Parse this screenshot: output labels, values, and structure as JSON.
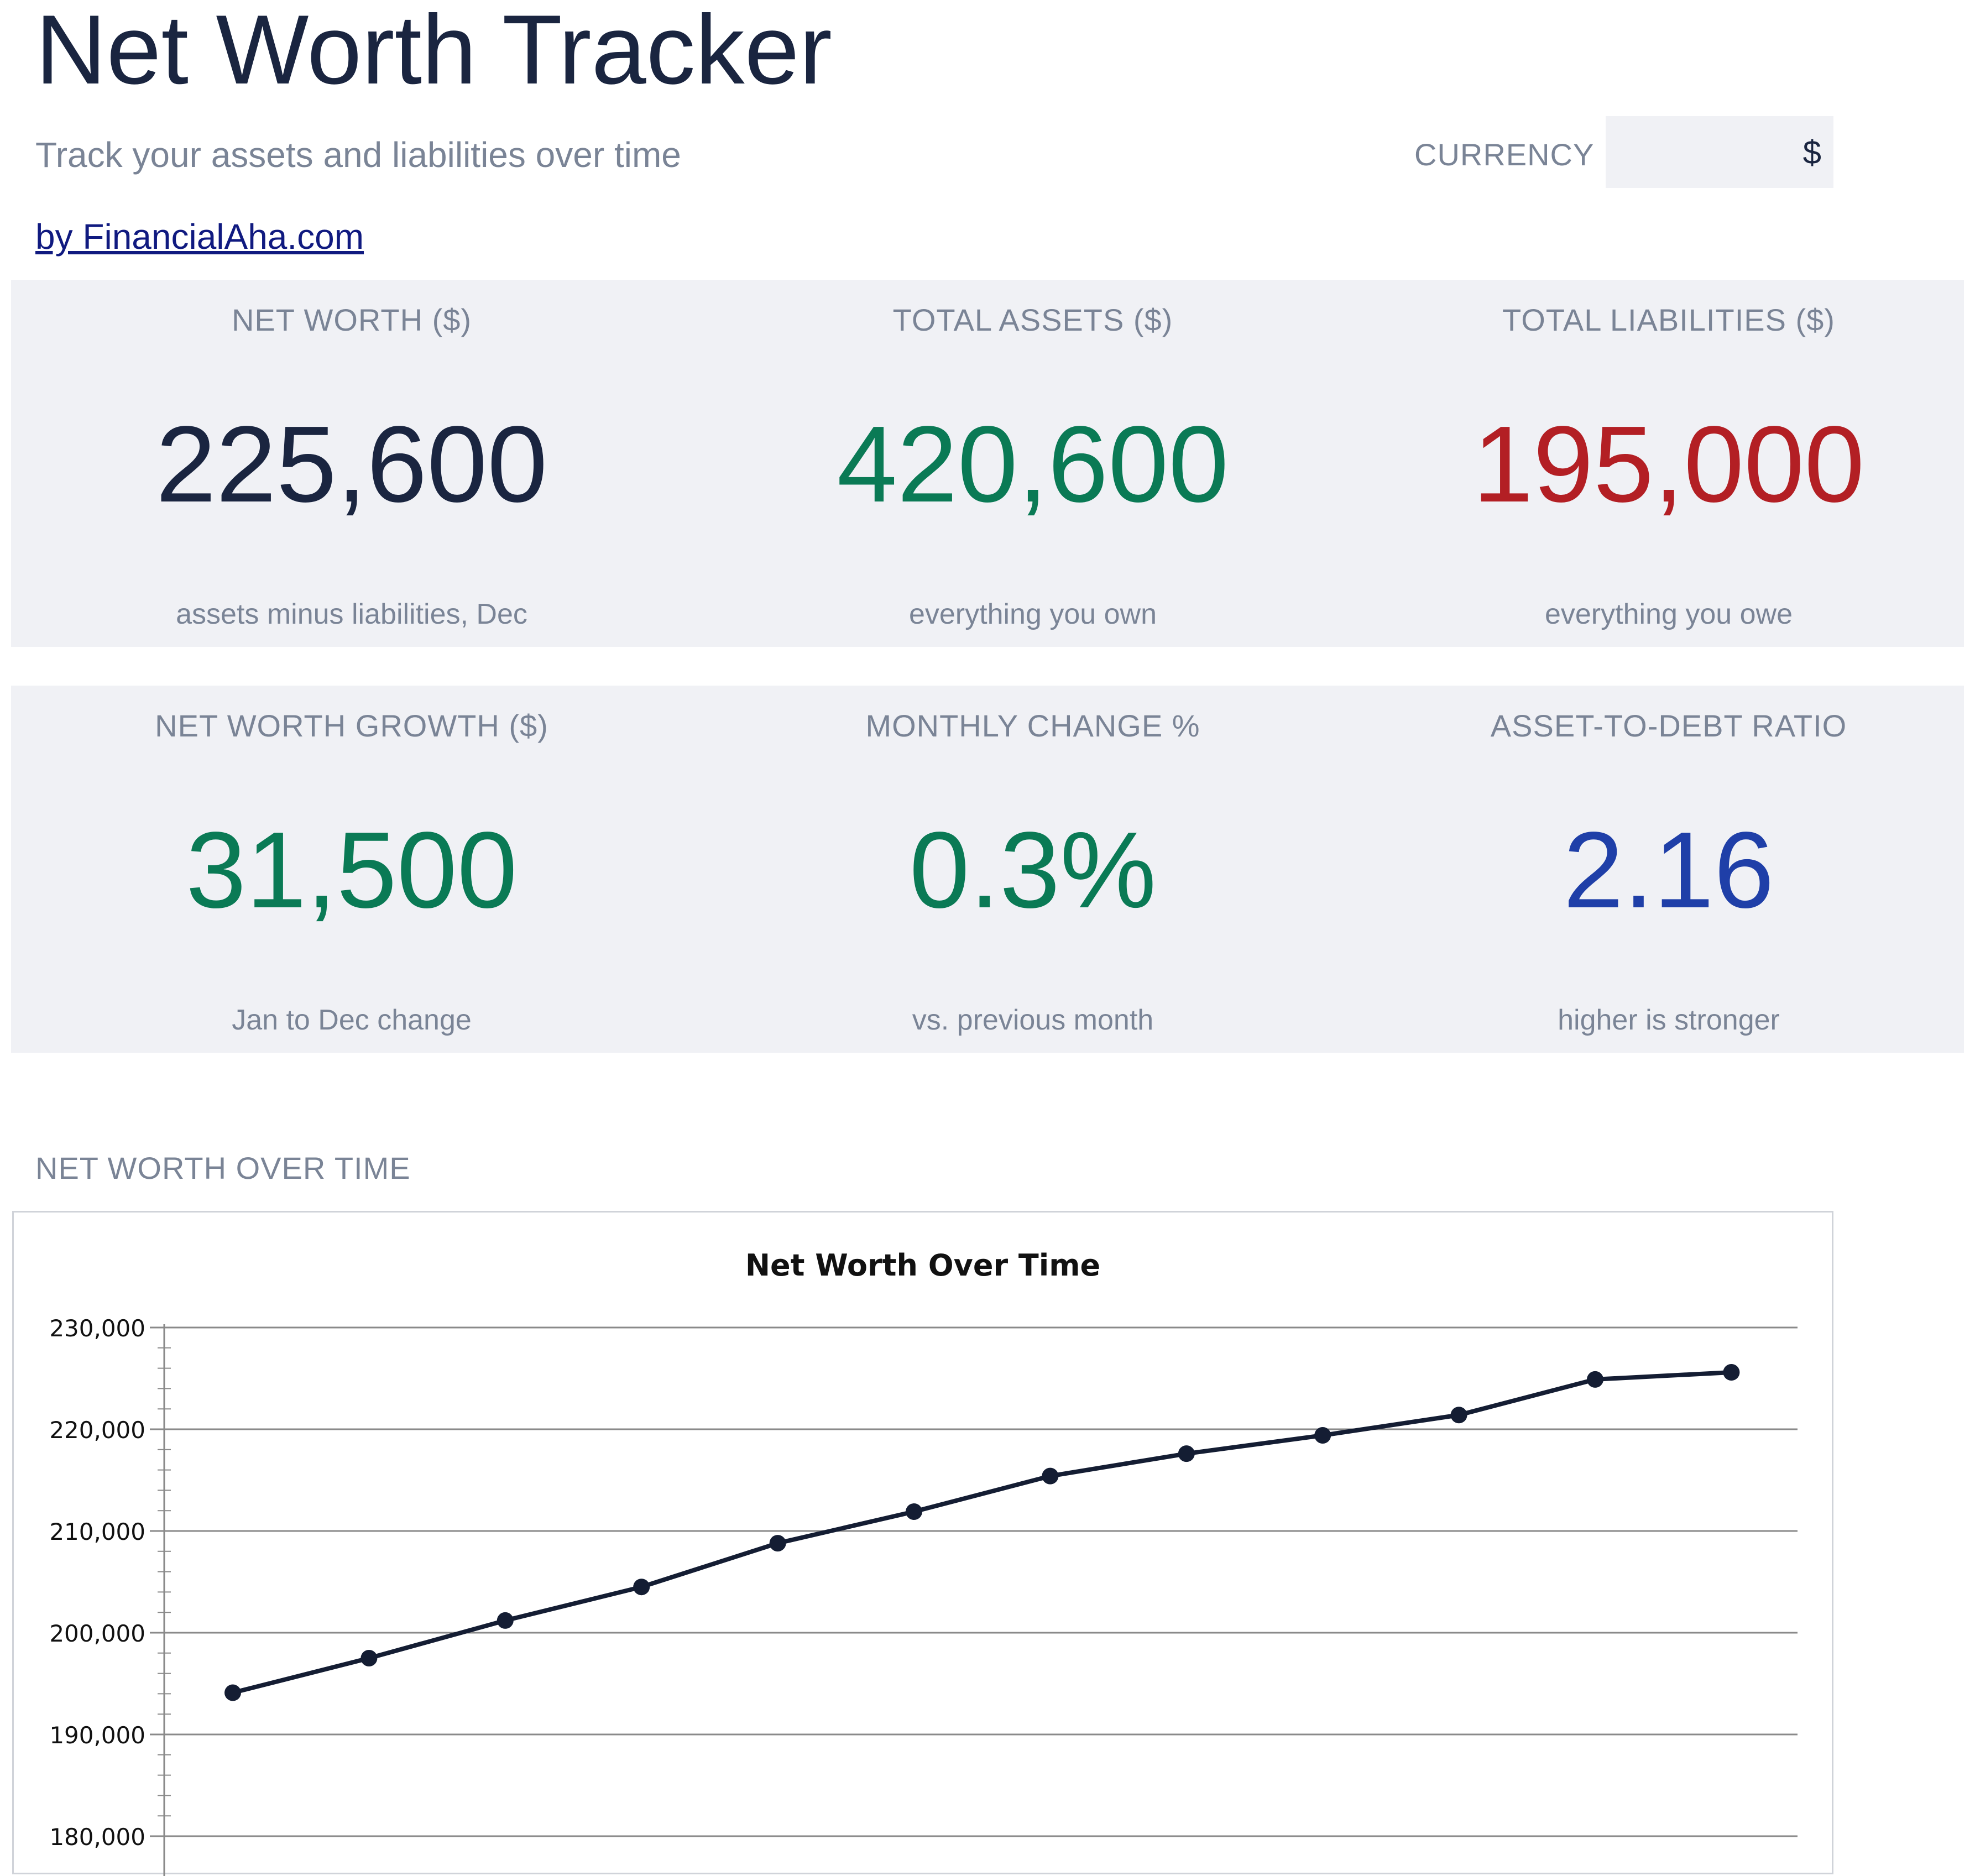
{
  "header": {
    "title": "Net Worth Tracker",
    "subtitle": "Track your assets and liabilities over time",
    "byline": "by FinancialAha.com",
    "currency_label": "CURRENCY",
    "currency_value": "$"
  },
  "kpis": [
    {
      "label": "NET WORTH ($)",
      "value": "225,600",
      "sub": "assets minus liabilities, Dec",
      "color": "#1a2540"
    },
    {
      "label": "TOTAL ASSETS ($)",
      "value": "420,600",
      "sub": "everything you own",
      "color": "#0a7a55"
    },
    {
      "label": "TOTAL LIABILITIES ($)",
      "value": "195,000",
      "sub": "everything you owe",
      "color": "#b31f24"
    },
    {
      "label": "NET WORTH GROWTH ($)",
      "value": "31,500",
      "sub": "Jan to Dec change",
      "color": "#0a7a55"
    },
    {
      "label": "MONTHLY CHANGE %",
      "value": "0.3%",
      "sub": "vs. previous month",
      "color": "#0a7a55"
    },
    {
      "label": "ASSET-TO-DEBT RATIO",
      "value": "2.16",
      "sub": "higher is stronger",
      "color": "#1f3fa8"
    }
  ],
  "chart_section_label": "NET WORTH OVER TIME",
  "chart_data": {
    "type": "line",
    "title": "Net Worth Over Time",
    "xlabel": "",
    "ylabel": "",
    "x": [
      1,
      2,
      3,
      4,
      5,
      6,
      7,
      8,
      9,
      10,
      11,
      12
    ],
    "series": [
      {
        "values": [
          194100,
          197500,
          201200,
          204500,
          208800,
          211900,
          215400,
          217600,
          219400,
          221400,
          224900,
          225600
        ]
      }
    ],
    "ylim": [
      180000,
      230000
    ],
    "yticks": [
      180000,
      190000,
      200000,
      210000,
      220000,
      230000
    ],
    "ytick_labels": [
      "180,000",
      "190,000",
      "200,000",
      "210,000",
      "220,000",
      "230,000"
    ],
    "grid": true,
    "line_color": "#141d33"
  }
}
